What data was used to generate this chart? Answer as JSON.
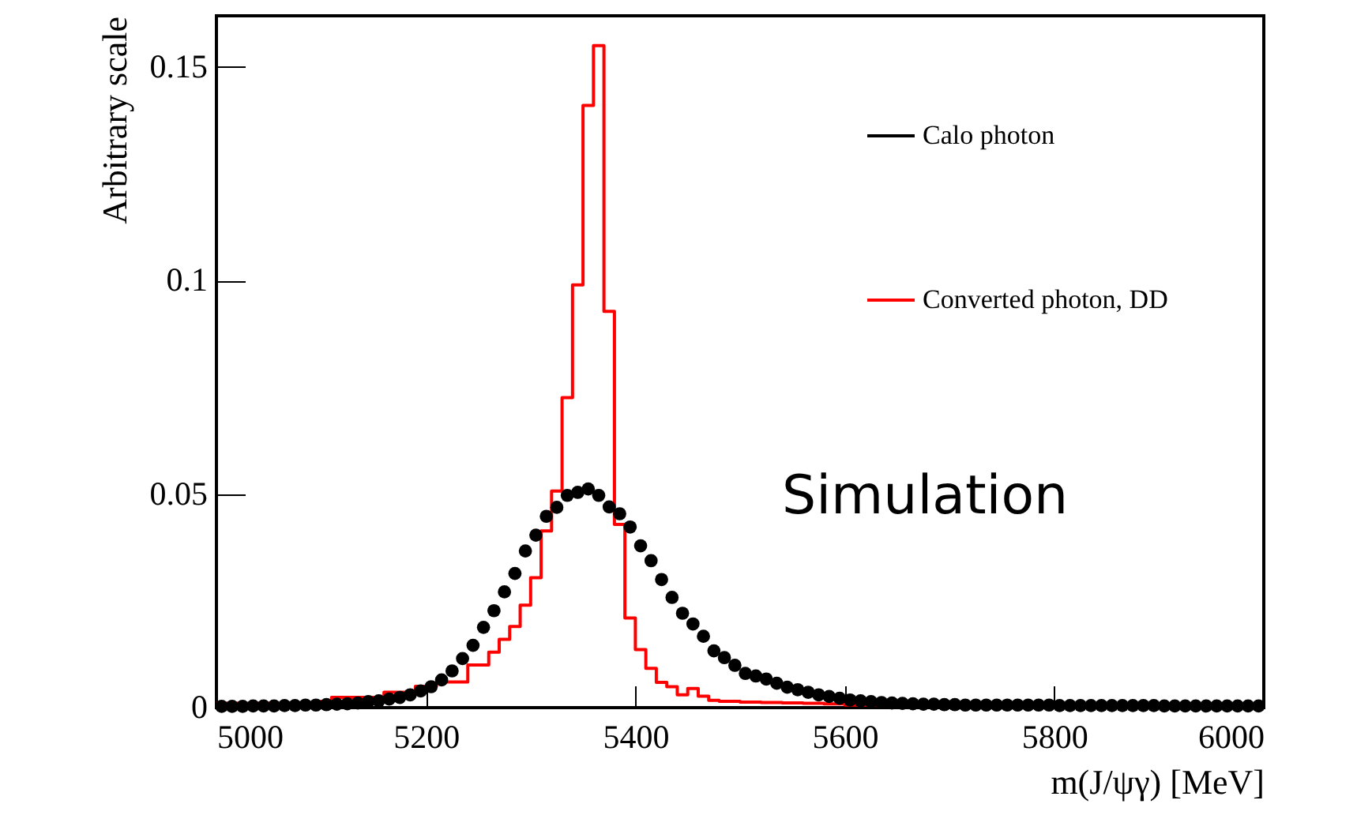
{
  "chart_data": {
    "type": "histogram",
    "xlabel": "m(J/ψγ) [MeV]",
    "ylabel": "Arbitrary scale",
    "xlim": [
      5000,
      6000
    ],
    "xticks": [
      5000,
      5200,
      5400,
      5600,
      5800,
      6000
    ],
    "ylim": [
      0,
      0.162
    ],
    "yticks": [
      0,
      0.05,
      0.1,
      0.15
    ],
    "grid": false,
    "legend": "top right",
    "annotations": [
      "Simulation"
    ],
    "series": [
      {
        "name": "Calo photon",
        "type": "scatter",
        "marker": "circle",
        "color": "#000000",
        "x": [
          5005,
          5015,
          5025,
          5035,
          5045,
          5055,
          5065,
          5075,
          5085,
          5095,
          5105,
          5115,
          5125,
          5135,
          5145,
          5155,
          5165,
          5175,
          5185,
          5195,
          5205,
          5215,
          5225,
          5235,
          5245,
          5255,
          5265,
          5275,
          5285,
          5295,
          5305,
          5315,
          5325,
          5335,
          5345,
          5355,
          5365,
          5375,
          5385,
          5395,
          5405,
          5415,
          5425,
          5435,
          5445,
          5455,
          5465,
          5475,
          5485,
          5495,
          5505,
          5515,
          5525,
          5535,
          5545,
          5555,
          5565,
          5575,
          5585,
          5595,
          5605,
          5615,
          5625,
          5635,
          5645,
          5655,
          5665,
          5675,
          5685,
          5695,
          5705,
          5715,
          5725,
          5735,
          5745,
          5755,
          5765,
          5775,
          5785,
          5795,
          5805,
          5815,
          5825,
          5835,
          5845,
          5855,
          5865,
          5875,
          5885,
          5895,
          5905,
          5915,
          5925,
          5935,
          5945,
          5955,
          5965,
          5975,
          5985,
          5995
        ],
        "values": [
          0.0003,
          0.0003,
          0.0003,
          0.0004,
          0.0004,
          0.0004,
          0.0005,
          0.0005,
          0.0006,
          0.0006,
          0.0007,
          0.0008,
          0.0009,
          0.0011,
          0.0014,
          0.0016,
          0.002,
          0.0024,
          0.003,
          0.0039,
          0.0049,
          0.0065,
          0.0086,
          0.0115,
          0.0146,
          0.0188,
          0.0227,
          0.0271,
          0.0314,
          0.0367,
          0.0404,
          0.0448,
          0.0469,
          0.0497,
          0.0504,
          0.0512,
          0.0497,
          0.047,
          0.0454,
          0.0423,
          0.0379,
          0.0344,
          0.03,
          0.0258,
          0.0221,
          0.0196,
          0.0167,
          0.0133,
          0.0117,
          0.0099,
          0.008,
          0.0074,
          0.0067,
          0.0057,
          0.0048,
          0.0042,
          0.0036,
          0.003,
          0.0026,
          0.0022,
          0.0018,
          0.0016,
          0.0014,
          0.0012,
          0.0011,
          0.001,
          0.0009,
          0.0008,
          0.0008,
          0.0007,
          0.0007,
          0.0006,
          0.0006,
          0.0006,
          0.0006,
          0.0006,
          0.0006,
          0.0006,
          0.0006,
          0.0006,
          0.0005,
          0.0005,
          0.0005,
          0.0005,
          0.0005,
          0.0005,
          0.0005,
          0.0005,
          0.0005,
          0.0005,
          0.0004,
          0.0004,
          0.0004,
          0.0004,
          0.0004,
          0.0004,
          0.0004,
          0.0004,
          0.0004,
          0.0004
        ]
      },
      {
        "name": "Converted photon, DD",
        "color": "#ff0000",
        "bins": [
          5000,
          5010,
          5020,
          5030,
          5040,
          5050,
          5060,
          5070,
          5080,
          5090,
          5100,
          5110,
          5120,
          5130,
          5140,
          5150,
          5160,
          5170,
          5180,
          5190,
          5200,
          5210,
          5220,
          5230,
          5240,
          5250,
          5260,
          5270,
          5280,
          5290,
          5300,
          5310,
          5320,
          5330,
          5340,
          5350,
          5360,
          5370,
          5380,
          5390,
          5400,
          5410,
          5420,
          5430,
          5440,
          5450,
          5460,
          5470,
          5480,
          5490,
          5500,
          5510,
          5520,
          5530,
          5540,
          5550,
          5560,
          5570,
          5580,
          5590,
          5600,
          5610,
          5620,
          5630,
          5640,
          5650,
          5660,
          5670,
          5680,
          5690,
          5700,
          5710,
          5720,
          5730,
          5740,
          5750,
          5760,
          5770,
          5780,
          5790,
          5800,
          5810,
          5820,
          5830,
          5840,
          5850,
          5860,
          5870,
          5880,
          5890,
          5900,
          5910,
          5920,
          5930,
          5940,
          5950,
          5960,
          5970,
          5980,
          5990,
          6000
        ],
        "values": [
          0.001,
          0.001,
          0.001,
          0.001,
          0.001,
          0.001,
          0.001,
          0.001,
          0.001,
          0.001,
          0.0015,
          0.0024,
          0.0024,
          0.0024,
          0.0024,
          0.0024,
          0.0036,
          0.0036,
          0.0036,
          0.005,
          0.005,
          0.006,
          0.006,
          0.006,
          0.01,
          0.01,
          0.013,
          0.016,
          0.019,
          0.024,
          0.0304,
          0.0414,
          0.0507,
          0.0726,
          0.099,
          0.141,
          0.155,
          0.0928,
          0.0429,
          0.021,
          0.0136,
          0.0092,
          0.0059,
          0.0049,
          0.003,
          0.0045,
          0.0027,
          0.0017,
          0.0015,
          0.0015,
          0.0013,
          0.0013,
          0.0012,
          0.0012,
          0.0011,
          0.0011,
          0.001,
          0.001,
          0.0009,
          0.0009,
          0.0006,
          0.0006,
          0.0006,
          0.0006,
          0.0006,
          0.0006,
          0.0006,
          0.0006,
          0.0006,
          0.0006,
          0.0005,
          0.0005,
          0.0005,
          0.0005,
          0.0005,
          0.0005,
          0.0005,
          0.0005,
          0.0005,
          0.0005,
          0.0004,
          0.0004,
          0.0004,
          0.0004,
          0.0004,
          0.0004,
          0.0004,
          0.0004,
          0.0004,
          0.0004,
          0.0004,
          0.0004,
          0.0004,
          0.0004,
          0.0004,
          0.0004,
          0.0004,
          0.0004,
          0.0004,
          0.0004
        ]
      }
    ]
  }
}
